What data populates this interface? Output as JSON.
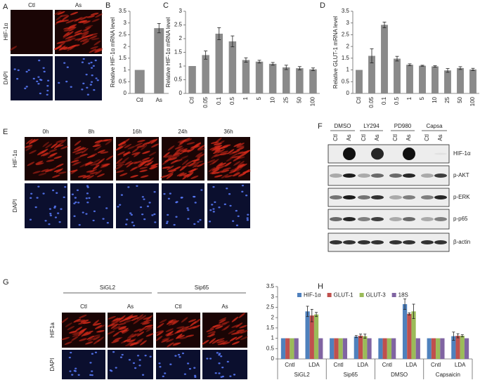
{
  "chart_data": [
    {
      "type": "bar",
      "panel": "B",
      "ylabel": "Relative HIF-1α mRNA level",
      "categories": [
        "Ctl",
        "As"
      ],
      "values": [
        1,
        2.78
      ],
      "errors": [
        0,
        0.2
      ],
      "color": "#8a8a8a",
      "ylim": [
        0,
        3.5
      ],
      "yticks": [
        0,
        0.5,
        1,
        1.5,
        2,
        2.5,
        3,
        3.5
      ]
    },
    {
      "type": "bar",
      "panel": "C",
      "ylabel": "Relative HIF-1α mRNA level",
      "categories": [
        "Ctl",
        "0.05",
        "0.1",
        "0.5",
        "1",
        "5",
        "10",
        "25",
        "50",
        "100"
      ],
      "values": [
        1,
        1.4,
        2.18,
        1.9,
        1.22,
        1.16,
        1.08,
        0.95,
        0.92,
        0.88
      ],
      "errors": [
        0,
        0.15,
        0.22,
        0.2,
        0.08,
        0.05,
        0.05,
        0.08,
        0.06,
        0.05
      ],
      "color": "#8a8a8a",
      "ylim": [
        0,
        3
      ],
      "yticks": [
        0,
        0.5,
        1,
        1.5,
        2,
        2.5,
        3
      ]
    },
    {
      "type": "bar",
      "panel": "D",
      "ylabel": "Relative GLUT-1 mRNA level",
      "categories": [
        "Ctl",
        "0.05",
        "0.1",
        "0.5",
        "1",
        "5",
        "10",
        "25",
        "50",
        "100"
      ],
      "values": [
        1,
        1.6,
        2.92,
        1.48,
        1.22,
        1.18,
        1.15,
        0.98,
        1.08,
        1.02
      ],
      "errors": [
        0,
        0.3,
        0.12,
        0.1,
        0.04,
        0.02,
        0.03,
        0.08,
        0.06,
        0.05
      ],
      "color": "#8a8a8a",
      "ylim": [
        0,
        3.5
      ],
      "yticks": [
        0,
        0.5,
        1,
        1.5,
        2,
        2.5,
        3,
        3.5
      ]
    },
    {
      "type": "grouped_bar",
      "panel": "H",
      "categories": [
        "Cntl",
        "LDA",
        "Cntl",
        "LDA",
        "Cntl",
        "LDA",
        "Cntl",
        "LDA"
      ],
      "groups": [
        "SiGL2",
        "Sip65",
        "DMSO",
        "Capsaicin"
      ],
      "series": [
        {
          "name": "HIF-1α",
          "color": "#4f81bd",
          "values": [
            1,
            2.3,
            1,
            1.08,
            1,
            2.65,
            1,
            1.1
          ],
          "errors": [
            0,
            0.25,
            0,
            0.05,
            0,
            0.25,
            0,
            0.2
          ]
        },
        {
          "name": "GLUT-1",
          "color": "#c0504d",
          "values": [
            1,
            2.1,
            1,
            1.12,
            1,
            2.18,
            1,
            1.12
          ],
          "errors": [
            0,
            0.3,
            0,
            0.08,
            0,
            0.05,
            0,
            0.1
          ]
        },
        {
          "name": "GLUT-3",
          "color": "#9bbb59",
          "values": [
            1,
            2.15,
            1,
            1.1,
            1,
            2.3,
            1,
            1.12
          ],
          "errors": [
            0,
            0.1,
            0,
            0.1,
            0,
            0.35,
            0,
            0.05
          ]
        },
        {
          "name": "18S",
          "color": "#8064a2",
          "values": [
            1,
            1,
            1,
            1,
            1,
            1,
            1,
            1
          ],
          "errors": [
            0,
            0,
            0,
            0,
            0,
            0,
            0,
            0
          ]
        }
      ],
      "legend": "top",
      "ylim": [
        0,
        3.5
      ],
      "yticks": [
        0,
        0.5,
        1,
        1.5,
        2,
        2.5,
        3,
        3.5
      ]
    }
  ],
  "panel_a": {
    "label": "A",
    "columns": [
      "Ctl",
      "As"
    ],
    "rows": [
      "HIF-1α",
      "DAPI"
    ]
  },
  "panel_e": {
    "label": "E",
    "columns": [
      "0h",
      "8h",
      "16h",
      "24h",
      "36h"
    ],
    "rows": [
      "HIF-1α",
      "DAPI"
    ]
  },
  "panel_f": {
    "label": "F",
    "treatments": [
      "DMSO",
      "LY294",
      "PD980",
      "Capsa"
    ],
    "lanes": [
      "Ctl",
      "As",
      "Ctl",
      "As",
      "Ctl",
      "As",
      "Ctl",
      "As"
    ],
    "bands": [
      "HIF-1α",
      "p-AKT",
      "p-ERK",
      "p-p65",
      "β-actin"
    ]
  },
  "panel_g": {
    "label": "G",
    "groups": [
      "SiGL2",
      "Sip65"
    ],
    "columns": [
      "Ctl",
      "As",
      "Ctl",
      "As"
    ],
    "rows": [
      "HIF1a",
      "DAPI"
    ]
  }
}
